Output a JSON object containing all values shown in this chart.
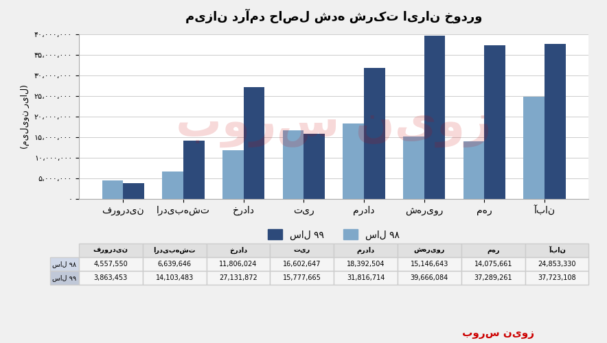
{
  "title": "میزان درآمد حاصل شده شرکت ایران خودرو",
  "ylabel": "(میلیون ریال)",
  "categories": [
    "فروردین",
    "اردیبهشت",
    "خرداد",
    "تیر",
    "مرداد",
    "شهریور",
    "مهر",
    "آبان"
  ],
  "sal98": [
    4557550,
    6639646,
    11806024,
    16602647,
    18392504,
    15146643,
    14075661,
    24853330
  ],
  "sal99": [
    3863453,
    14103483,
    27131872,
    15777665,
    31816714,
    39666084,
    37289261,
    37723108
  ],
  "sal98_label": "سال ۹۸",
  "sal99_label": "سال ۹۹",
  "color98": "#7fa8c9",
  "color99": "#2d4a7a",
  "ylim": [
    0,
    40000000
  ],
  "yticks": [
    0,
    5000000,
    10000000,
    15000000,
    20000000,
    25000000,
    30000000,
    35000000,
    40000000
  ],
  "ytick_labels": [
    "۰",
    "۵،۰۰۰،۰۰۰",
    "۱۰،۰۰۰،۰۰۰",
    "۱۵،۰۰۰،۰۰۰",
    "۲۰،۰۰۰،۰۰۰",
    "۲۵،۰۰۰،۰۰۰",
    "۳۰،۰۰۰،۰۰۰",
    "۳۵،۰۰۰،۰۰۰",
    "۴۰،۰۰۰،۰۰۰"
  ],
  "bg_color": "#f0f0f0",
  "plot_bg_color": "#ffffff",
  "grid_color": "#cccccc",
  "watermark_text": "بورس نیوز",
  "watermark_color": "#cc0000"
}
